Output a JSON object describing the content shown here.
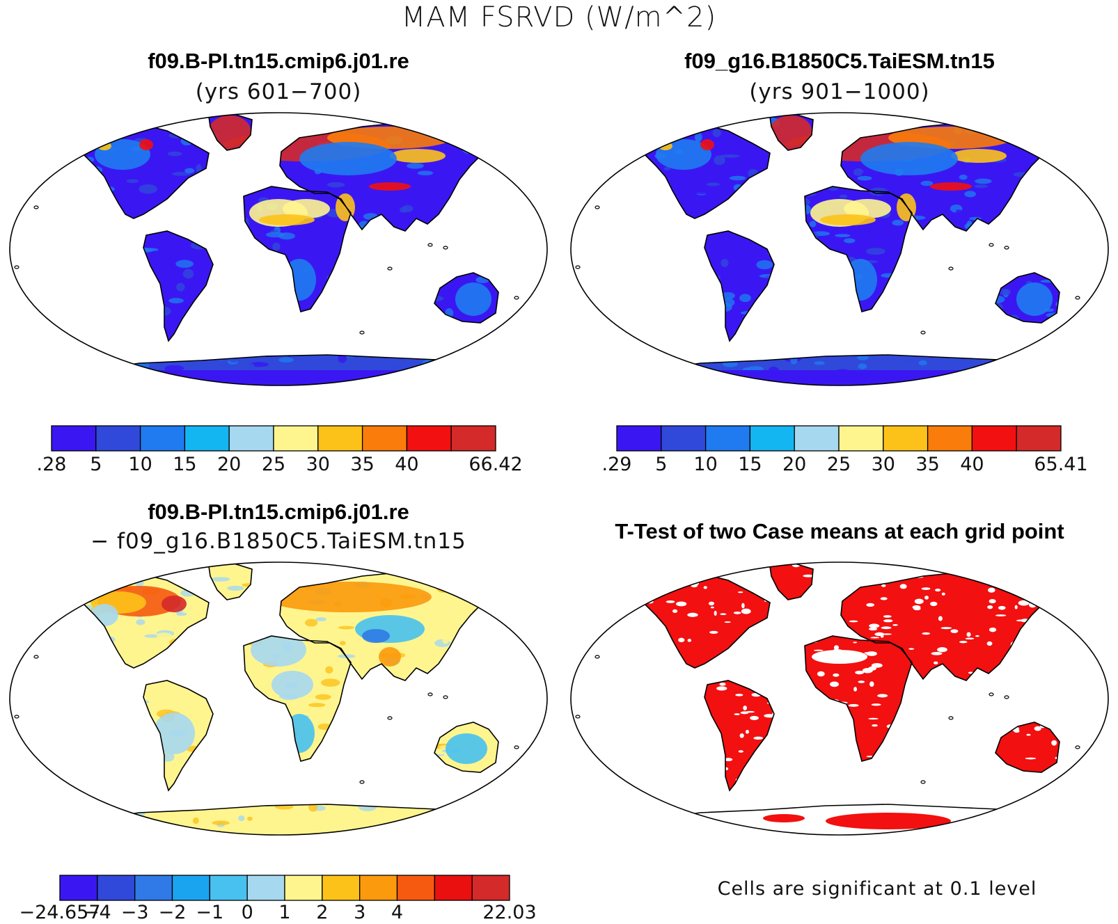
{
  "title": "MAM FSRVD (W/m^2)",
  "panels": [
    {
      "id": "case1",
      "title": "f09.B-PI.tn15.cmip6.j01.re",
      "subtitle": "(yrs 601−700)",
      "colorbar": {
        "colors": [
          "#3a17f2",
          "#3049db",
          "#1f7bef",
          "#14b6f2",
          "#a6d8ef",
          "#fff58f",
          "#fdc21a",
          "#fa7c0a",
          "#f21010",
          "#d42a2a"
        ],
        "labels": [
          ".28",
          "5",
          "10",
          "15",
          "20",
          "25",
          "30",
          "35",
          "40",
          "66.42"
        ]
      }
    },
    {
      "id": "case2",
      "title": "f09_g16.B1850C5.TaiESM.tn15",
      "subtitle": "(yrs 901−1000)",
      "colorbar": {
        "colors": [
          "#3a17f2",
          "#3049db",
          "#1f7bef",
          "#14b6f2",
          "#a6d8ef",
          "#fff58f",
          "#fdc21a",
          "#fa7c0a",
          "#f21010",
          "#d42a2a"
        ],
        "labels": [
          ".29",
          "5",
          "10",
          "15",
          "20",
          "25",
          "30",
          "35",
          "40",
          "65.41"
        ]
      }
    },
    {
      "id": "diff",
      "title": "f09.B-PI.tn15.cmip6.j01.re",
      "subtitle": "− f09_g16.B1850C5.TaiESM.tn15",
      "colorbar": {
        "colors": [
          "#3a17f2",
          "#3049db",
          "#2f7ae6",
          "#1aa4f0",
          "#48c1f0",
          "#a6d8ef",
          "#fff58f",
          "#fdc21a",
          "#fb9a0c",
          "#f55a10",
          "#ea1010",
          "#d42a2a"
        ],
        "labels": [
          "−24.657",
          "−4",
          "−3",
          "−2",
          "−1",
          "0",
          "1",
          "2",
          "3",
          "4",
          "22.03"
        ]
      }
    },
    {
      "id": "ttest",
      "title": "T-Test of two Case means at each grid point",
      "note": "Cells are significant at 0.1 level"
    }
  ]
}
